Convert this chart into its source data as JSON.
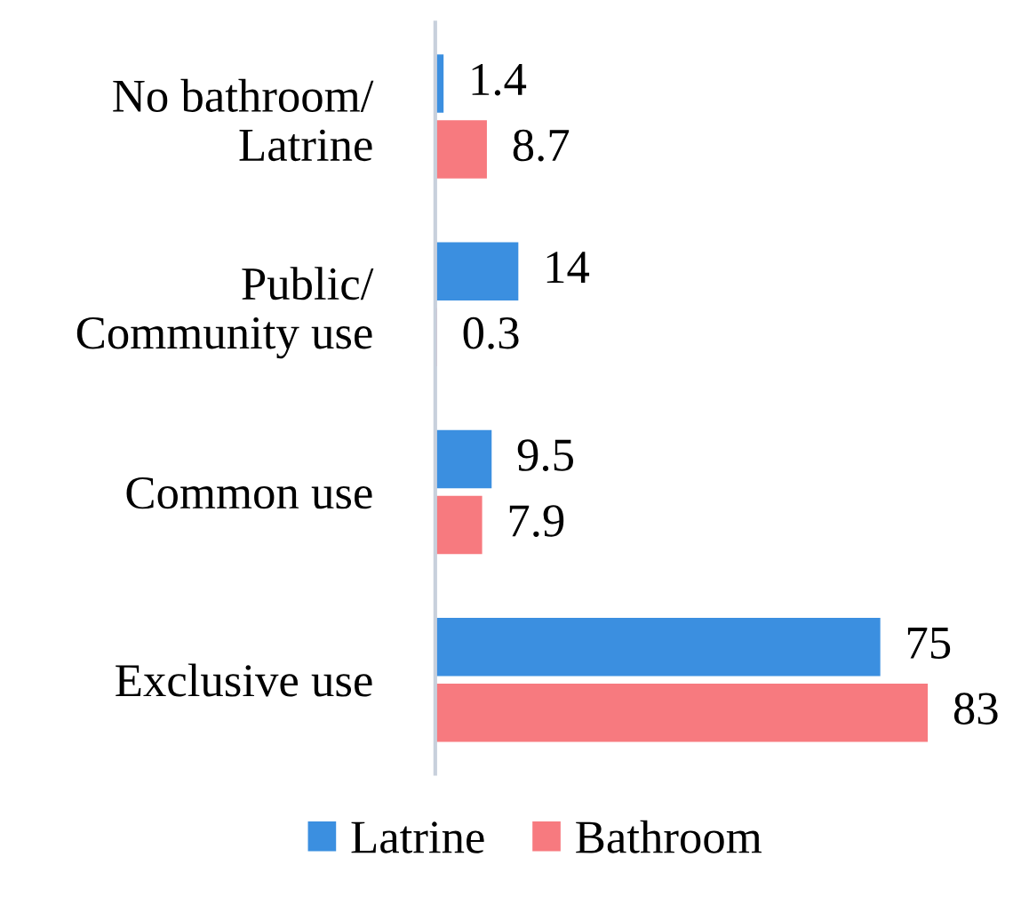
{
  "chart_data": {
    "type": "bar",
    "orientation": "horizontal",
    "categories": [
      "No bathroom/\nLatrine",
      "Public/\nCommunity use",
      "Common use",
      "Exclusive use"
    ],
    "series": [
      {
        "name": "Latrine",
        "color": "#3b8fe0",
        "values": [
          1.4,
          14,
          9.5,
          75
        ]
      },
      {
        "name": "Bathroom",
        "color": "#f77a7f",
        "values": [
          8.7,
          0.3,
          7.9,
          83
        ]
      }
    ],
    "data_labels": true,
    "legend": "bottom",
    "grid": false
  }
}
